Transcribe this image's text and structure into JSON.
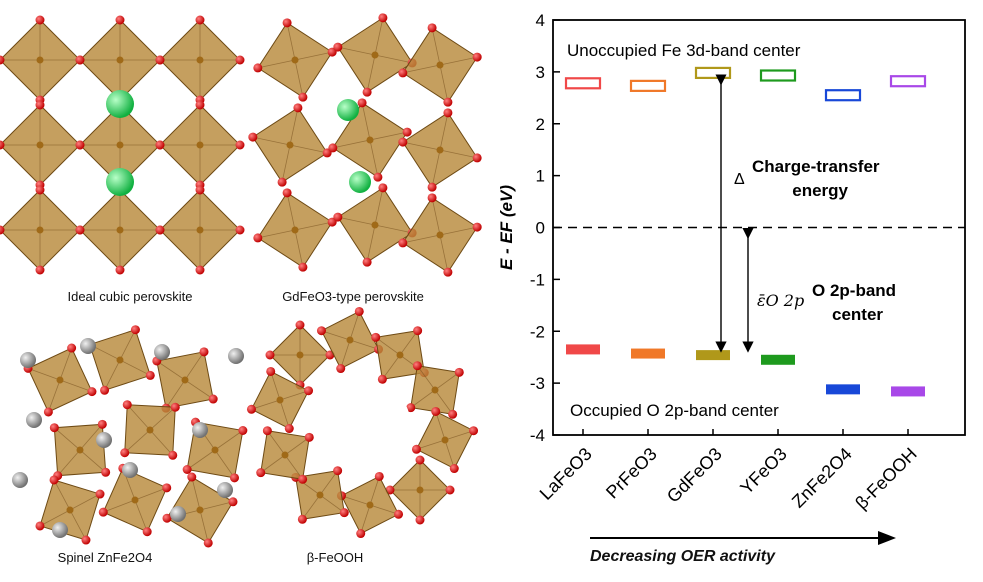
{
  "structures": [
    {
      "label": "Ideal cubic perovskite",
      "type": "cubic"
    },
    {
      "label": "GdFeO3-type perovskite",
      "type": "gdfeo3"
    },
    {
      "label": "Spinel ZnFe2O4",
      "type": "spinel"
    },
    {
      "label": "β-FeOOH",
      "type": "feooh"
    }
  ],
  "chart_data": {
    "type": "bar",
    "categories": [
      "LaFeO3",
      "PrFeO3",
      "GdFeO3",
      "YFeO3",
      "ZnFe2O4",
      "β-FeOOH"
    ],
    "series": [
      {
        "name": "Unoccupied Fe 3d-band center",
        "values": [
          2.78,
          2.73,
          2.98,
          2.93,
          2.55,
          2.82
        ]
      },
      {
        "name": "Occupied O 2p-band center",
        "values": [
          -2.35,
          -2.43,
          -2.46,
          -2.55,
          -3.12,
          -3.16
        ]
      }
    ],
    "colors": [
      "#f04848",
      "#f07828",
      "#b0981a",
      "#1e9a1e",
      "#1848d8",
      "#a848e8"
    ],
    "ylabel": "E - EF (eV)",
    "ylim": [
      -4,
      4
    ],
    "yticks": [
      -4,
      -3,
      -2,
      -1,
      0,
      1,
      2,
      3,
      4
    ],
    "reference_line": 0,
    "annotations": {
      "top_label": "Unoccupied Fe 3d-band center",
      "bottom_label": "Occupied O 2p-band center",
      "delta_symbol": "Δ",
      "charge_transfer_line1": "Charge-transfer",
      "charge_transfer_line2": "energy",
      "o2p_symbol": "ε̄O 2p",
      "o2p_line1": "O 2p-band",
      "o2p_line2": "center"
    },
    "xcaption": "Decreasing OER activity"
  }
}
